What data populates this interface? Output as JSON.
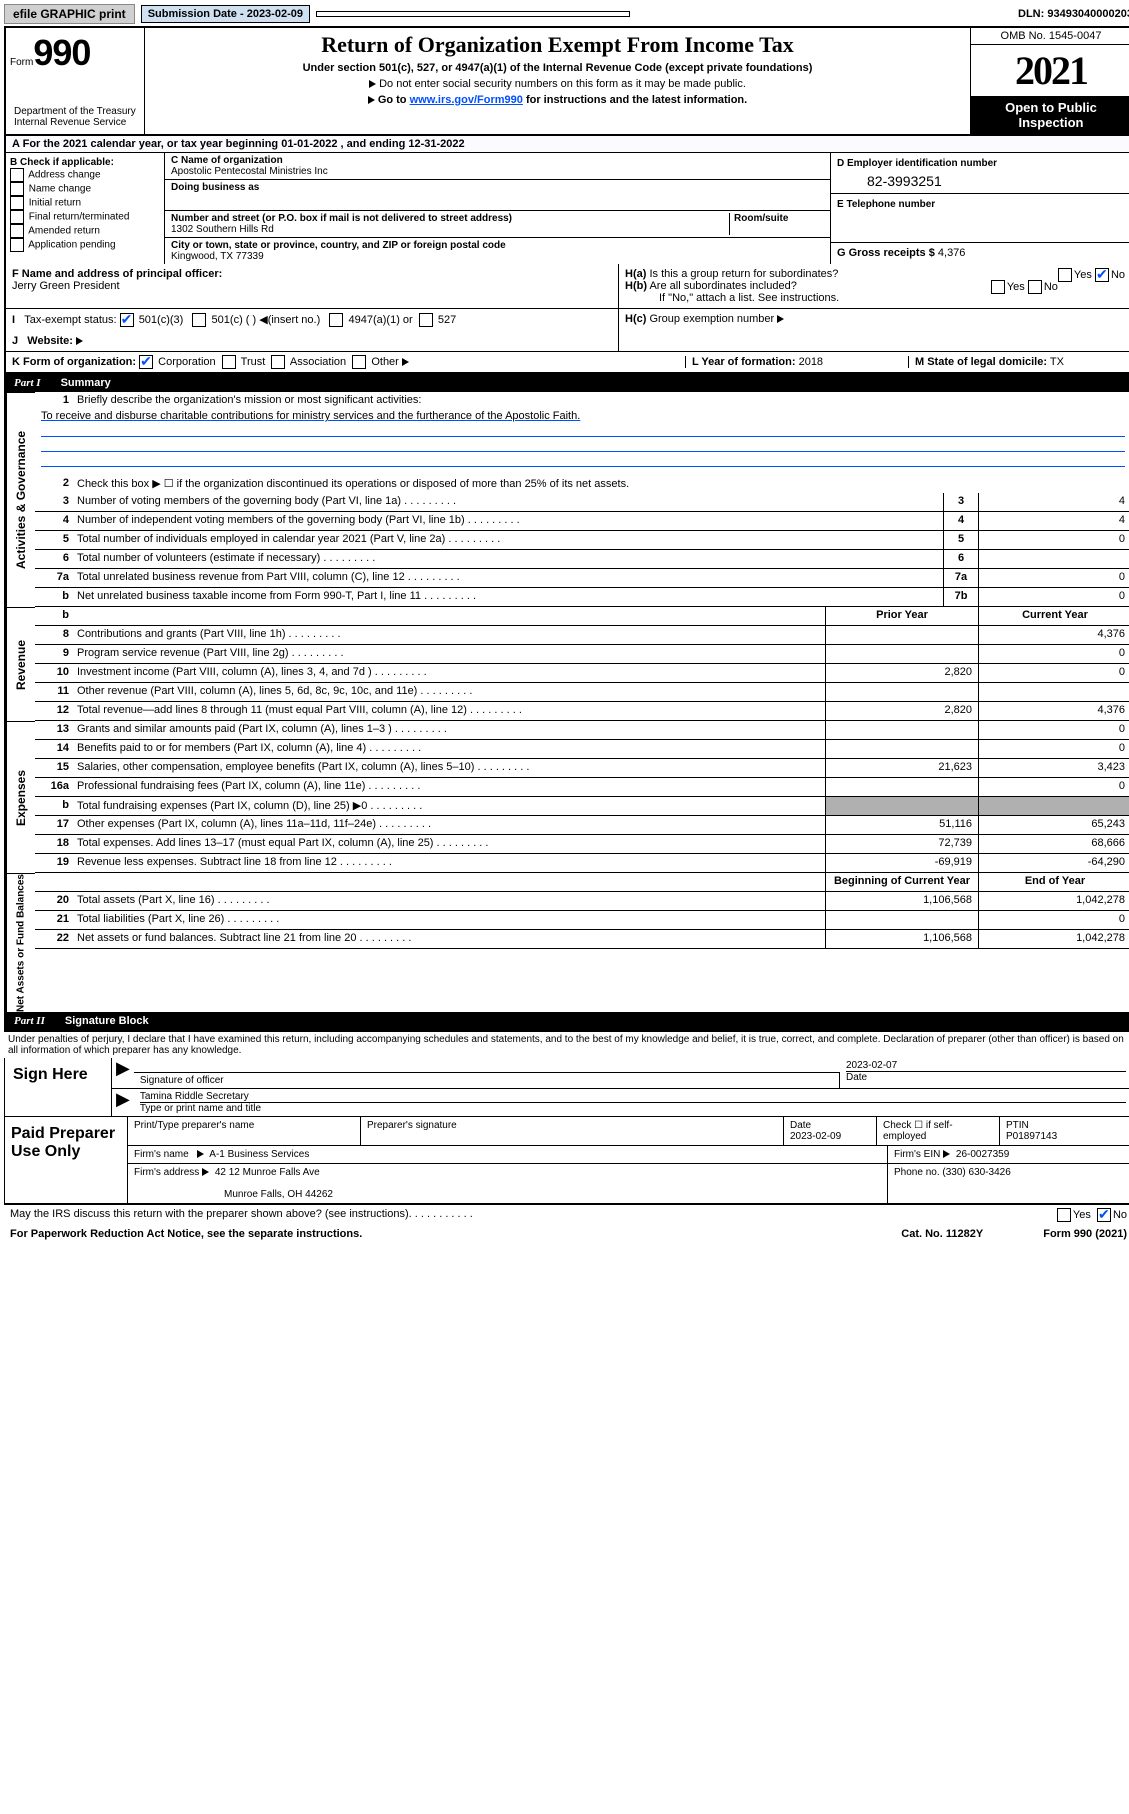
{
  "topbar": {
    "efile": "efile GRAPHIC print",
    "submission_label": "Submission Date - 2023-02-09",
    "dln": "DLN: 93493040000203"
  },
  "header": {
    "form_label": "Form",
    "form_num": "990",
    "title": "Return of Organization Exempt From Income Tax",
    "sub1": "Under section 501(c), 527, or 4947(a)(1) of the Internal Revenue Code (except private foundations)",
    "sub2": "Do not enter social security numbers on this form as it may be made public.",
    "sub3_pre": "Go to ",
    "sub3_link": "www.irs.gov/Form990",
    "sub3_post": " for instructions and the latest information.",
    "omb": "OMB No. 1545-0047",
    "year": "2021",
    "open": "Open to Public Inspection",
    "dept": "Department of the Treasury\nInternal Revenue Service"
  },
  "lineA": "For the 2021 calendar year, or tax year beginning 01-01-2022   , and ending 12-31-2022",
  "boxB": {
    "label": "B Check if applicable:",
    "items": [
      "Address change",
      "Name change",
      "Initial return",
      "Final return/terminated",
      "Amended return",
      "Application pending"
    ]
  },
  "boxC": {
    "name_label": "C Name of organization",
    "name": "Apostolic Pentecostal Ministries Inc",
    "dba_label": "Doing business as",
    "dba": "",
    "addr_label": "Number and street (or P.O. box if mail is not delivered to street address)",
    "room_label": "Room/suite",
    "addr": "1302 Southern Hills Rd",
    "city_label": "City or town, state or province, country, and ZIP or foreign postal code",
    "city": "Kingwood, TX  77339"
  },
  "boxD": {
    "label": "D Employer identification number",
    "val": "82-3993251"
  },
  "boxE": {
    "label": "E Telephone number",
    "val": ""
  },
  "boxG": {
    "label": "G Gross receipts $",
    "val": "4,376"
  },
  "boxF": {
    "label": "F Name and address of principal officer:",
    "val": "Jerry Green President"
  },
  "boxH": {
    "a": "Is this a group return for subordinates?",
    "b": "Are all subordinates included?",
    "note": "If \"No,\" attach a list. See instructions.",
    "c": "Group exemption number"
  },
  "lineI": {
    "label": "Tax-exempt status:",
    "o1": "501(c)(3)",
    "o2": "501(c) (  )",
    "o2b": "(insert no.)",
    "o3": "4947(a)(1) or",
    "o4": "527"
  },
  "lineJ": {
    "label": "Website:"
  },
  "lineK": {
    "label": "K Form of organization:",
    "o1": "Corporation",
    "o2": "Trust",
    "o3": "Association",
    "o4": "Other"
  },
  "lineL": {
    "label": "L Year of formation:",
    "val": "2018"
  },
  "lineM": {
    "label": "M State of legal domicile:",
    "val": "TX"
  },
  "part1": {
    "label": "Part I",
    "title": "Summary",
    "q1": "Briefly describe the organization's mission or most significant activities:",
    "mission": "To receive and disburse charitable contributions for ministry services and the furtherance of the Apostolic Faith.",
    "q2": "Check this box ▶ ☐  if the organization discontinued its operations or disposed of more than 25% of its net assets.",
    "rows_gov": [
      {
        "n": "3",
        "d": "Number of voting members of the governing body (Part VI, line 1a)",
        "box": "3",
        "v": "4"
      },
      {
        "n": "4",
        "d": "Number of independent voting members of the governing body (Part VI, line 1b)",
        "box": "4",
        "v": "4"
      },
      {
        "n": "5",
        "d": "Total number of individuals employed in calendar year 2021 (Part V, line 2a)",
        "box": "5",
        "v": "0"
      },
      {
        "n": "6",
        "d": "Total number of volunteers (estimate if necessary)",
        "box": "6",
        "v": ""
      },
      {
        "n": "7a",
        "d": "Total unrelated business revenue from Part VIII, column (C), line 12",
        "box": "7a",
        "v": "0"
      },
      {
        "n": "b",
        "d": "Net unrelated business taxable income from Form 990-T, Part I, line 11",
        "box": "7b",
        "v": "0"
      }
    ],
    "col_hdr": {
      "prior": "Prior Year",
      "current": "Current Year"
    },
    "rows_rev": [
      {
        "n": "8",
        "d": "Contributions and grants (Part VIII, line 1h)",
        "p": "",
        "c": "4,376"
      },
      {
        "n": "9",
        "d": "Program service revenue (Part VIII, line 2g)",
        "p": "",
        "c": "0"
      },
      {
        "n": "10",
        "d": "Investment income (Part VIII, column (A), lines 3, 4, and 7d )",
        "p": "2,820",
        "c": "0"
      },
      {
        "n": "11",
        "d": "Other revenue (Part VIII, column (A), lines 5, 6d, 8c, 9c, 10c, and 11e)",
        "p": "",
        "c": ""
      },
      {
        "n": "12",
        "d": "Total revenue—add lines 8 through 11 (must equal Part VIII, column (A), line 12)",
        "p": "2,820",
        "c": "4,376"
      }
    ],
    "rows_exp": [
      {
        "n": "13",
        "d": "Grants and similar amounts paid (Part IX, column (A), lines 1–3 )",
        "p": "",
        "c": "0"
      },
      {
        "n": "14",
        "d": "Benefits paid to or for members (Part IX, column (A), line 4)",
        "p": "",
        "c": "0"
      },
      {
        "n": "15",
        "d": "Salaries, other compensation, employee benefits (Part IX, column (A), lines 5–10)",
        "p": "21,623",
        "c": "3,423"
      },
      {
        "n": "16a",
        "d": "Professional fundraising fees (Part IX, column (A), line 11e)",
        "p": "",
        "c": "0"
      },
      {
        "n": "b",
        "d": "Total fundraising expenses (Part IX, column (D), line 25) ▶0",
        "p": "grey",
        "c": "grey"
      },
      {
        "n": "17",
        "d": "Other expenses (Part IX, column (A), lines 11a–11d, 11f–24e)",
        "p": "51,116",
        "c": "65,243"
      },
      {
        "n": "18",
        "d": "Total expenses. Add lines 13–17 (must equal Part IX, column (A), line 25)",
        "p": "72,739",
        "c": "68,666"
      },
      {
        "n": "19",
        "d": "Revenue less expenses. Subtract line 18 from line 12",
        "p": "-69,919",
        "c": "-64,290"
      }
    ],
    "col_hdr2": {
      "begin": "Beginning of Current Year",
      "end": "End of Year"
    },
    "rows_net": [
      {
        "n": "20",
        "d": "Total assets (Part X, line 16)",
        "p": "1,106,568",
        "c": "1,042,278"
      },
      {
        "n": "21",
        "d": "Total liabilities (Part X, line 26)",
        "p": "",
        "c": "0"
      },
      {
        "n": "22",
        "d": "Net assets or fund balances. Subtract line 21 from line 20",
        "p": "1,106,568",
        "c": "1,042,278"
      }
    ]
  },
  "part2": {
    "label": "Part II",
    "title": "Signature Block",
    "decl": "Under penalties of perjury, I declare that I have examined this return, including accompanying schedules and statements, and to the best of my knowledge and belief, it is true, correct, and complete. Declaration of preparer (other than officer) is based on all information of which preparer has any knowledge."
  },
  "sign": {
    "here": "Sign Here",
    "sig_label": "Signature of officer",
    "date": "2023-02-07",
    "date_label": "Date",
    "name": "Tamina Riddle Secretary",
    "name_label": "Type or print name and title"
  },
  "prep": {
    "title": "Paid Preparer Use Only",
    "h1": "Print/Type preparer's name",
    "h2": "Preparer's signature",
    "h3": "Date",
    "h3v": "2023-02-09",
    "h4": "Check ☐ if self-employed",
    "h5": "PTIN",
    "h5v": "P01897143",
    "firm_label": "Firm's name",
    "firm": "A-1 Business Services",
    "ein_label": "Firm's EIN",
    "ein": "26-0027359",
    "addr_label": "Firm's address",
    "addr1": "42 12 Munroe Falls Ave",
    "addr2": "Munroe Falls, OH  44262",
    "phone_label": "Phone no.",
    "phone": "(330) 630-3426"
  },
  "footer": {
    "q": "May the IRS discuss this return with the preparer shown above? (see instructions)",
    "notice": "For Paperwork Reduction Act Notice, see the separate instructions.",
    "cat": "Cat. No. 11282Y",
    "form": "Form 990 (2021)"
  },
  "side_labels": {
    "gov": "Activities & Governance",
    "rev": "Revenue",
    "exp": "Expenses",
    "net": "Net Assets or Fund Balances"
  }
}
